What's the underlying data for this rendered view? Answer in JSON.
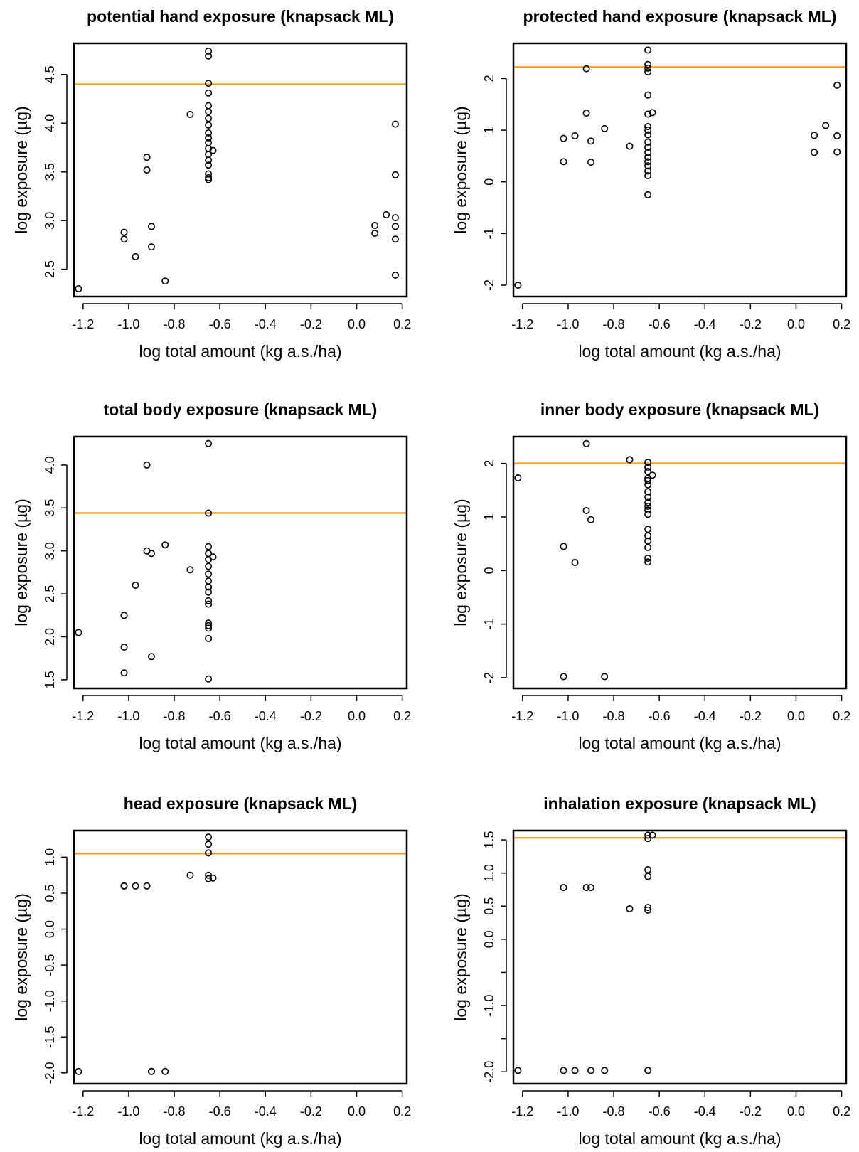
{
  "colors": {
    "threshold": "#f5a01a",
    "points": "#000000",
    "frame": "#000000"
  },
  "chart_data": [
    {
      "type": "scatter",
      "title": "potential hand exposure (knapsack ML)",
      "xlabel": "log total amount (kg a.s./ha)",
      "ylabel": "log exposure (µg)",
      "xlim": [
        -1.24,
        0.22
      ],
      "ylim": [
        2.22,
        4.82
      ],
      "xticks": [
        -1.2,
        -1.0,
        -0.8,
        -0.6,
        -0.4,
        -0.2,
        0.0,
        0.2
      ],
      "xtick_labels": [
        "-1.2",
        "-1.0",
        "-0.8",
        "-0.6",
        "-0.4",
        "-0.2",
        "0.0",
        "0.2"
      ],
      "yticks": [
        2.5,
        3.0,
        3.5,
        4.0,
        4.5
      ],
      "ytick_labels": [
        "2.5",
        "3.0",
        "3.5",
        "4.0",
        "4.5"
      ],
      "threshold": 4.4,
      "x": [
        -1.22,
        -1.02,
        -1.02,
        -0.97,
        -0.92,
        -0.92,
        -0.9,
        -0.9,
        -0.84,
        -0.73,
        -0.65,
        -0.65,
        -0.65,
        -0.65,
        -0.65,
        -0.65,
        -0.65,
        -0.65,
        -0.65,
        -0.65,
        -0.65,
        -0.65,
        -0.65,
        -0.65,
        -0.65,
        -0.65,
        -0.65,
        -0.65,
        -0.63,
        0.08,
        0.08,
        0.13,
        0.17,
        0.17,
        0.17,
        0.17,
        0.17,
        0.17
      ],
      "y": [
        2.3,
        2.88,
        2.81,
        2.63,
        3.65,
        3.52,
        2.94,
        2.73,
        2.38,
        4.09,
        4.74,
        4.69,
        4.41,
        4.31,
        4.18,
        4.12,
        4.05,
        3.98,
        3.9,
        3.85,
        3.8,
        3.74,
        3.68,
        3.62,
        3.57,
        3.48,
        3.44,
        3.42,
        3.72,
        2.95,
        2.87,
        3.06,
        3.99,
        3.47,
        3.03,
        2.94,
        2.81,
        2.44
      ]
    },
    {
      "type": "scatter",
      "title": "protected hand exposure (knapsack ML)",
      "xlabel": "log total amount (kg a.s./ha)",
      "ylabel": "log exposure (µg)",
      "xlim": [
        -1.24,
        0.22
      ],
      "ylim": [
        -2.22,
        2.68
      ],
      "xticks": [
        -1.2,
        -1.0,
        -0.8,
        -0.6,
        -0.4,
        -0.2,
        0.0,
        0.2
      ],
      "xtick_labels": [
        "-1.2",
        "-1.0",
        "-0.8",
        "-0.6",
        "-0.4",
        "-0.2",
        "0.0",
        "0.2"
      ],
      "yticks": [
        -2,
        -1,
        0,
        1,
        2
      ],
      "ytick_labels": [
        "-2",
        "-1",
        "0",
        "1",
        "2"
      ],
      "threshold": 2.22,
      "x": [
        -1.22,
        -1.02,
        -1.02,
        -0.97,
        -0.92,
        -0.92,
        -0.9,
        -0.9,
        -0.84,
        -0.73,
        -0.65,
        -0.65,
        -0.65,
        -0.65,
        -0.65,
        -0.65,
        -0.65,
        -0.65,
        -0.65,
        -0.65,
        -0.65,
        -0.65,
        -0.65,
        -0.65,
        -0.65,
        -0.65,
        -0.65,
        -0.65,
        -0.63,
        0.08,
        0.08,
        0.13,
        0.18,
        0.18,
        0.18
      ],
      "y": [
        -2.0,
        0.84,
        0.39,
        0.89,
        2.19,
        1.33,
        0.79,
        0.38,
        1.03,
        0.69,
        2.55,
        2.27,
        2.2,
        2.13,
        1.68,
        1.31,
        1.07,
        1.0,
        0.91,
        0.77,
        0.67,
        0.57,
        0.48,
        0.39,
        0.31,
        0.21,
        0.12,
        -0.25,
        1.34,
        0.9,
        0.57,
        1.09,
        1.87,
        0.89,
        0.58
      ]
    },
    {
      "type": "scatter",
      "title": "total body exposure (knapsack ML)",
      "xlabel": "log total amount (kg a.s./ha)",
      "ylabel": "log exposure (µg)",
      "xlim": [
        -1.24,
        0.22
      ],
      "ylim": [
        1.4,
        4.33
      ],
      "xticks": [
        -1.2,
        -1.0,
        -0.8,
        -0.6,
        -0.4,
        -0.2,
        0.0,
        0.2
      ],
      "xtick_labels": [
        "-1.2",
        "-1.0",
        "-0.8",
        "-0.6",
        "-0.4",
        "-0.2",
        "0.0",
        "0.2"
      ],
      "yticks": [
        1.5,
        2.0,
        2.5,
        3.0,
        3.5,
        4.0
      ],
      "ytick_labels": [
        "1.5",
        "2.0",
        "2.5",
        "3.0",
        "3.5",
        "4.0"
      ],
      "threshold": 3.44,
      "x": [
        -1.22,
        -1.02,
        -1.02,
        -1.02,
        -0.97,
        -0.92,
        -0.92,
        -0.9,
        -0.9,
        -0.84,
        -0.73,
        -0.65,
        -0.65,
        -0.65,
        -0.65,
        -0.65,
        -0.65,
        -0.65,
        -0.65,
        -0.65,
        -0.65,
        -0.65,
        -0.65,
        -0.65,
        -0.65,
        -0.65,
        -0.65,
        -0.65,
        -0.65,
        -0.63
      ],
      "y": [
        2.05,
        2.25,
        1.88,
        1.58,
        2.6,
        4.0,
        3.0,
        2.97,
        1.77,
        3.07,
        2.78,
        4.25,
        3.44,
        3.05,
        2.97,
        2.9,
        2.82,
        2.73,
        2.65,
        2.58,
        2.52,
        2.42,
        2.38,
        2.16,
        2.13,
        2.1,
        1.98,
        1.51,
        2.58,
        2.93
      ]
    },
    {
      "type": "scatter",
      "title": "inner body exposure (knapsack ML)",
      "xlabel": "log total amount (kg a.s./ha)",
      "ylabel": "log exposure (µg)",
      "xlim": [
        -1.24,
        0.22
      ],
      "ylim": [
        -2.2,
        2.5
      ],
      "xticks": [
        -1.2,
        -1.0,
        -0.8,
        -0.6,
        -0.4,
        -0.2,
        0.0,
        0.2
      ],
      "xtick_labels": [
        "-1.2",
        "-1.0",
        "-0.8",
        "-0.6",
        "-0.4",
        "-0.2",
        "0.0",
        "0.2"
      ],
      "yticks": [
        -2,
        -1,
        0,
        1,
        2
      ],
      "ytick_labels": [
        "-2",
        "-1",
        "0",
        "1",
        "2"
      ],
      "threshold": 2.0,
      "x": [
        -1.22,
        -1.02,
        -1.02,
        -0.97,
        -0.92,
        -0.92,
        -0.9,
        -0.84,
        -0.73,
        -0.65,
        -0.65,
        -0.65,
        -0.65,
        -0.65,
        -0.65,
        -0.65,
        -0.65,
        -0.65,
        -0.65,
        -0.65,
        -0.65,
        -0.65,
        -0.65,
        -0.65,
        -0.65,
        -0.65,
        -0.65,
        -0.63
      ],
      "y": [
        1.73,
        0.45,
        -1.98,
        0.15,
        2.37,
        1.12,
        0.95,
        -1.98,
        2.07,
        2.02,
        1.93,
        1.85,
        1.72,
        1.6,
        1.47,
        1.37,
        1.27,
        1.2,
        1.13,
        1.05,
        0.77,
        0.65,
        0.55,
        0.43,
        0.23,
        0.16,
        1.68,
        1.78
      ]
    },
    {
      "type": "scatter",
      "title": "head exposure (knapsack ML)",
      "xlabel": "log total amount (kg a.s./ha)",
      "ylabel": "log exposure (µg)",
      "xlim": [
        -1.24,
        0.22
      ],
      "ylim": [
        -2.15,
        1.37
      ],
      "xticks": [
        -1.2,
        -1.0,
        -0.8,
        -0.6,
        -0.4,
        -0.2,
        0.0,
        0.2
      ],
      "xtick_labels": [
        "-1.2",
        "-1.0",
        "-0.8",
        "-0.6",
        "-0.4",
        "-0.2",
        "0.0",
        "0.2"
      ],
      "yticks": [
        -2.0,
        -1.5,
        -1.0,
        -0.5,
        0.0,
        0.5,
        1.0
      ],
      "ytick_labels": [
        "-2.0",
        "-1.5",
        "-1.0",
        "-0.5",
        "0.0",
        "0.5",
        "1.0"
      ],
      "threshold": 1.05,
      "x": [
        -1.22,
        -1.02,
        -1.02,
        -0.97,
        -0.92,
        -0.9,
        -0.9,
        -0.84,
        -0.73,
        -0.65,
        -0.65,
        -0.65,
        -0.65,
        -0.65,
        -0.63
      ],
      "y": [
        -1.98,
        0.6,
        0.6,
        0.6,
        0.6,
        -1.98,
        -1.98,
        -1.98,
        0.75,
        1.28,
        1.18,
        1.06,
        0.75,
        0.7,
        0.71
      ]
    },
    {
      "type": "scatter",
      "title": "inhalation exposure (knapsack ML)",
      "xlabel": "log total amount (kg a.s./ha)",
      "ylabel": "log exposure (µg)",
      "xlim": [
        -1.24,
        0.22
      ],
      "ylim": [
        -2.18,
        1.64
      ],
      "xticks": [
        -1.2,
        -1.0,
        -0.8,
        -0.6,
        -0.4,
        -0.2,
        0.0,
        0.2
      ],
      "xtick_labels": [
        "-1.2",
        "-1.0",
        "-0.8",
        "-0.6",
        "-0.4",
        "-0.2",
        "0.0",
        "0.2"
      ],
      "yticks": [
        -2.0,
        -1.5,
        -1.0,
        -0.5,
        0.0,
        0.5,
        1.0,
        1.5
      ],
      "ytick_labels": [
        "-2.0",
        "",
        "-1.0",
        "",
        "0.0",
        "0.5",
        "1.0",
        "1.5"
      ],
      "threshold": 1.53,
      "x": [
        -1.22,
        -1.02,
        -1.02,
        -0.97,
        -0.92,
        -0.9,
        -0.9,
        -0.84,
        -0.73,
        -0.65,
        -0.65,
        -0.65,
        -0.65,
        -0.65,
        -0.65,
        -0.65,
        -0.63
      ],
      "y": [
        -1.98,
        0.78,
        -1.98,
        -1.98,
        0.78,
        0.78,
        -1.98,
        -1.98,
        0.46,
        1.57,
        1.52,
        1.05,
        0.95,
        0.48,
        0.44,
        -1.98,
        1.57
      ]
    }
  ]
}
